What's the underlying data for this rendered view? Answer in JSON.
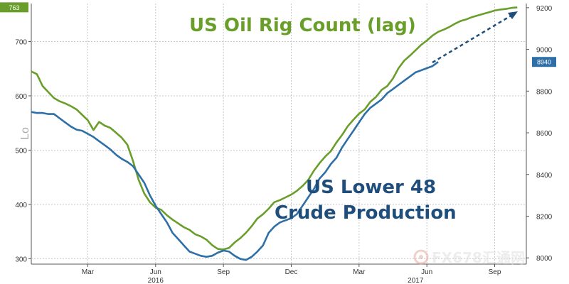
{
  "chart_data": {
    "type": "line",
    "title": "",
    "annotations": {
      "oil": "US Oil Rig Count (lag)",
      "production": [
        "US Lower 48",
        "Crude Production"
      ]
    },
    "left_axis": {
      "label": "Lo",
      "ticks": [
        300,
        400,
        500,
        600,
        700
      ],
      "ylim": [
        290,
        770
      ],
      "scale": "linear"
    },
    "right_axis": {
      "ticks": [
        8000,
        8200,
        8400,
        8600,
        8800,
        9000,
        9200
      ],
      "ylim": [
        7970,
        9220
      ]
    },
    "x_tick_labels": [
      "Mar",
      "Jun",
      "Sep",
      "Dec",
      "Mar",
      "Jun",
      "Sep"
    ],
    "x_tick_pos": [
      2.5,
      5.5,
      8.5,
      11.5,
      14.5,
      17.5,
      20.5
    ],
    "x_year_labels": [
      {
        "label": "2016",
        "x": 5.5
      },
      {
        "label": "2017",
        "x": 17.0
      }
    ],
    "xlim": [
      0,
      21.9
    ],
    "grid": true,
    "badges": [
      {
        "axis": "left",
        "value": 763,
        "text": "763",
        "color": "#6a9e2a"
      },
      {
        "axis": "right",
        "value": 8940,
        "text": "8940",
        "color": "#2f6fa7"
      }
    ],
    "series": [
      {
        "name": "US Oil Rig Count (lag)",
        "axis": "left",
        "color": "#6a9e2a",
        "x": [
          0,
          0.25,
          0.5,
          0.75,
          1,
          1.25,
          1.5,
          1.75,
          2,
          2.25,
          2.5,
          2.75,
          3,
          3.25,
          3.5,
          3.75,
          4,
          4.25,
          4.5,
          4.75,
          5,
          5.25,
          5.5,
          5.75,
          6,
          6.25,
          6.5,
          6.75,
          7,
          7.25,
          7.5,
          7.75,
          8,
          8.25,
          8.5,
          8.75,
          9,
          9.25,
          9.5,
          9.75,
          10,
          10.25,
          10.5,
          10.75,
          11,
          11.25,
          11.5,
          11.75,
          12,
          12.25,
          12.5,
          12.75,
          13,
          13.25,
          13.5,
          13.75,
          14,
          14.25,
          14.5,
          14.75,
          15,
          15.25,
          15.5,
          15.75,
          16,
          16.25,
          16.5,
          16.75,
          17,
          17.25,
          17.5,
          17.75,
          18,
          18.25,
          18.5,
          18.75,
          19,
          19.25,
          19.5,
          19.75,
          20,
          20.25,
          20.5,
          20.75,
          21,
          21.25,
          21.5
        ],
        "values": [
          645,
          640,
          618,
          607,
          596,
          590,
          586,
          581,
          575,
          565,
          555,
          537,
          552,
          545,
          541,
          532,
          523,
          510,
          480,
          445,
          420,
          404,
          394,
          390,
          380,
          372,
          365,
          358,
          353,
          345,
          341,
          335,
          325,
          318,
          317,
          320,
          330,
          338,
          348,
          360,
          374,
          382,
          392,
          404,
          408,
          413,
          418,
          425,
          434,
          445,
          462,
          476,
          488,
          498,
          514,
          528,
          544,
          556,
          567,
          575,
          589,
          598,
          611,
          618,
          632,
          651,
          665,
          674,
          684,
          694,
          702,
          711,
          718,
          722,
          727,
          733,
          738,
          741,
          745,
          748,
          751,
          754,
          757,
          759,
          760,
          762,
          763
        ]
      },
      {
        "name": "US Lower 48 Crude Production",
        "axis": "right",
        "color": "#2f6fa7",
        "x": [
          0,
          0.25,
          0.5,
          0.75,
          1,
          1.25,
          1.5,
          1.75,
          2,
          2.25,
          2.5,
          2.75,
          3,
          3.25,
          3.5,
          3.75,
          4,
          4.25,
          4.5,
          4.75,
          5,
          5.25,
          5.5,
          5.75,
          6,
          6.25,
          6.5,
          6.75,
          7,
          7.25,
          7.5,
          7.75,
          8,
          8.25,
          8.5,
          8.75,
          9,
          9.25,
          9.5,
          9.75,
          10,
          10.25,
          10.5,
          10.75,
          11,
          11.25,
          11.5,
          11.75,
          12,
          12.25,
          12.5,
          12.75,
          13,
          13.25,
          13.5,
          13.75,
          14,
          14.25,
          14.5,
          14.75,
          15,
          15.25,
          15.5,
          15.75,
          16,
          16.25,
          16.5,
          16.75,
          17,
          17.25,
          17.5,
          17.75,
          18
        ],
        "values": [
          8700,
          8695,
          8695,
          8690,
          8690,
          8670,
          8650,
          8630,
          8615,
          8610,
          8595,
          8580,
          8560,
          8540,
          8520,
          8495,
          8475,
          8460,
          8440,
          8400,
          8360,
          8300,
          8250,
          8210,
          8170,
          8120,
          8090,
          8060,
          8030,
          8020,
          8010,
          8005,
          8010,
          8025,
          8035,
          8030,
          8010,
          7995,
          7990,
          8005,
          8030,
          8060,
          8120,
          8150,
          8170,
          8180,
          8190,
          8210,
          8250,
          8290,
          8330,
          8380,
          8410,
          8450,
          8480,
          8530,
          8570,
          8610,
          8650,
          8690,
          8720,
          8740,
          8760,
          8790,
          8810,
          8830,
          8850,
          8870,
          8890,
          8900,
          8910,
          8920,
          8940
        ]
      }
    ]
  }
}
